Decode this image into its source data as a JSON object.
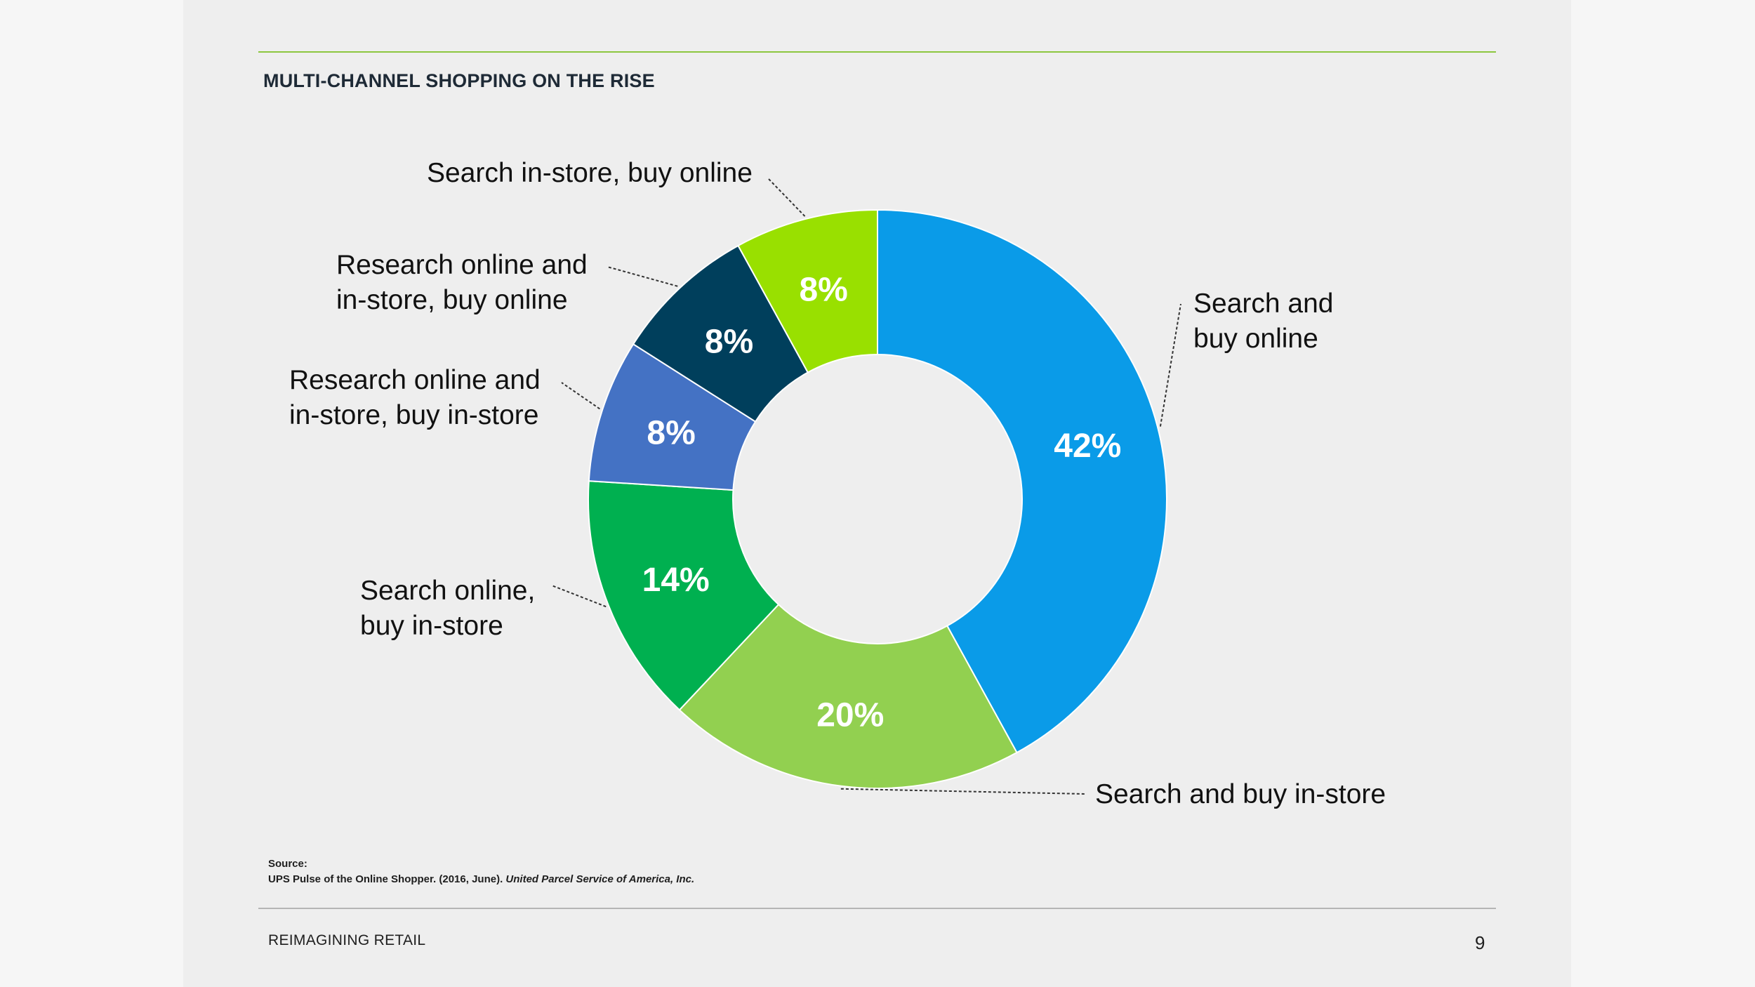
{
  "slide": {
    "title": "MULTI-CHANNEL SHOPPING ON THE RISE",
    "source_heading": "Source:",
    "source_text": "UPS Pulse of the Online Shopper. (2016, June).",
    "source_cite": "United Parcel Service of America, Inc.",
    "footer_left": "REIMAGINING RETAIL",
    "page_number": "9"
  },
  "chart_data": {
    "type": "pie",
    "title": "",
    "donut": true,
    "slices": [
      {
        "label": "Search and buy online",
        "value": 42,
        "value_label": "42%",
        "color": "#0a9be8"
      },
      {
        "label": "Search and buy in-store",
        "value": 20,
        "value_label": "20%",
        "color": "#92d050"
      },
      {
        "label": "Search online, buy in-store",
        "value": 14,
        "value_label": "14%",
        "color": "#00b050"
      },
      {
        "label": "Research online and in-store, buy in-store",
        "value": 8,
        "value_label": "8%",
        "color": "#4472c4"
      },
      {
        "label": "Research online and in-store, buy online",
        "value": 8,
        "value_label": "8%",
        "color": "#003f5c"
      },
      {
        "label": "Search in-store, buy online",
        "value": 8,
        "value_label": "8%",
        "color": "#99e000"
      }
    ]
  }
}
